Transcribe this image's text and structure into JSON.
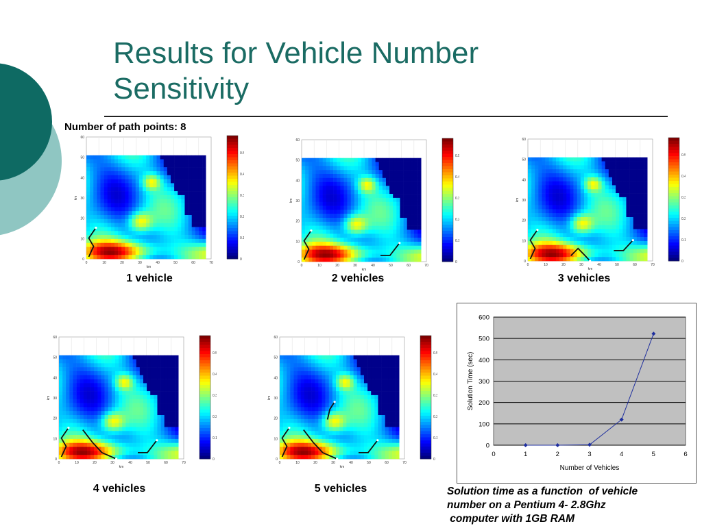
{
  "slide": {
    "title_line1": "Results for Vehicle Number",
    "title_line2": "Sensitivity",
    "path_points_label": "Number of path points: 8",
    "colors": {
      "title": "#1a6b63",
      "circle_dark": "#0e6a63",
      "circle_light": "#8fc6c2"
    }
  },
  "heatmaps": [
    {
      "caption": "1 vehicle"
    },
    {
      "caption": "2 vehicles"
    },
    {
      "caption": "3 vehicles"
    },
    {
      "caption": "4 vehicles"
    },
    {
      "caption": "5 vehicles"
    }
  ],
  "heatmap_axes": {
    "xlabel": "km",
    "ylabel": "km",
    "xticks": [
      "0",
      "10",
      "20",
      "30",
      "40",
      "50",
      "60",
      "70"
    ],
    "yticks": [
      "0",
      "10",
      "20",
      "30",
      "40",
      "50",
      "60"
    ],
    "colorbar_ticks": [
      "0",
      "0.1",
      "0.2",
      "0.3",
      "0.4",
      "0.5"
    ]
  },
  "chart_data": {
    "type": "line",
    "x": [
      1,
      2,
      3,
      4,
      5
    ],
    "values": [
      0,
      0,
      2,
      120,
      522
    ],
    "xlabel": "Number of Vehicles",
    "ylabel": "Solution Time (sec)",
    "xlim": [
      0,
      6
    ],
    "ylim": [
      0,
      600
    ],
    "xticks": [
      "0",
      "1",
      "2",
      "3",
      "4",
      "5",
      "6"
    ],
    "yticks": [
      "0",
      "100",
      "200",
      "300",
      "400",
      "500",
      "600"
    ],
    "grid": true,
    "plot_background": "#c0c0c0",
    "line_color": "#1f2f9e"
  },
  "footnote": {
    "line1": "Solution time as a function  of vehicle",
    "line2": "number on a Pentium 4- 2.8Ghz",
    "line3": " computer with 1GB RAM"
  }
}
